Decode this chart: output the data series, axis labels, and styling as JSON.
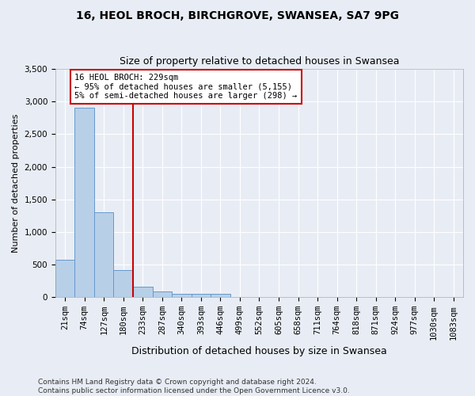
{
  "title_line1": "16, HEOL BROCH, BIRCHGROVE, SWANSEA, SA7 9PG",
  "title_line2": "Size of property relative to detached houses in Swansea",
  "xlabel": "Distribution of detached houses by size in Swansea",
  "ylabel": "Number of detached properties",
  "footnote": "Contains HM Land Registry data © Crown copyright and database right 2024.\nContains public sector information licensed under the Open Government Licence v3.0.",
  "categories": [
    "21sqm",
    "74sqm",
    "127sqm",
    "180sqm",
    "233sqm",
    "287sqm",
    "340sqm",
    "393sqm",
    "446sqm",
    "499sqm",
    "552sqm",
    "605sqm",
    "658sqm",
    "711sqm",
    "764sqm",
    "818sqm",
    "871sqm",
    "924sqm",
    "977sqm",
    "1030sqm",
    "1083sqm"
  ],
  "values": [
    570,
    2900,
    1300,
    420,
    160,
    90,
    55,
    50,
    50,
    0,
    0,
    0,
    0,
    0,
    0,
    0,
    0,
    0,
    0,
    0,
    0
  ],
  "bar_color": "#b8cfe8",
  "bar_edge_color": "#6699cc",
  "vline_color": "#cc0000",
  "annotation_text": "16 HEOL BROCH: 229sqm\n← 95% of detached houses are smaller (5,155)\n5% of semi-detached houses are larger (298) →",
  "annotation_box_color": "white",
  "annotation_box_edge_color": "#cc0000",
  "ylim": [
    0,
    3500
  ],
  "yticks": [
    0,
    500,
    1000,
    1500,
    2000,
    2500,
    3000,
    3500
  ],
  "background_color": "#e8edf5",
  "grid_color": "white",
  "title1_fontsize": 10,
  "title2_fontsize": 9,
  "xlabel_fontsize": 9,
  "ylabel_fontsize": 8,
  "tick_fontsize": 7.5,
  "footnote_fontsize": 6.5
}
